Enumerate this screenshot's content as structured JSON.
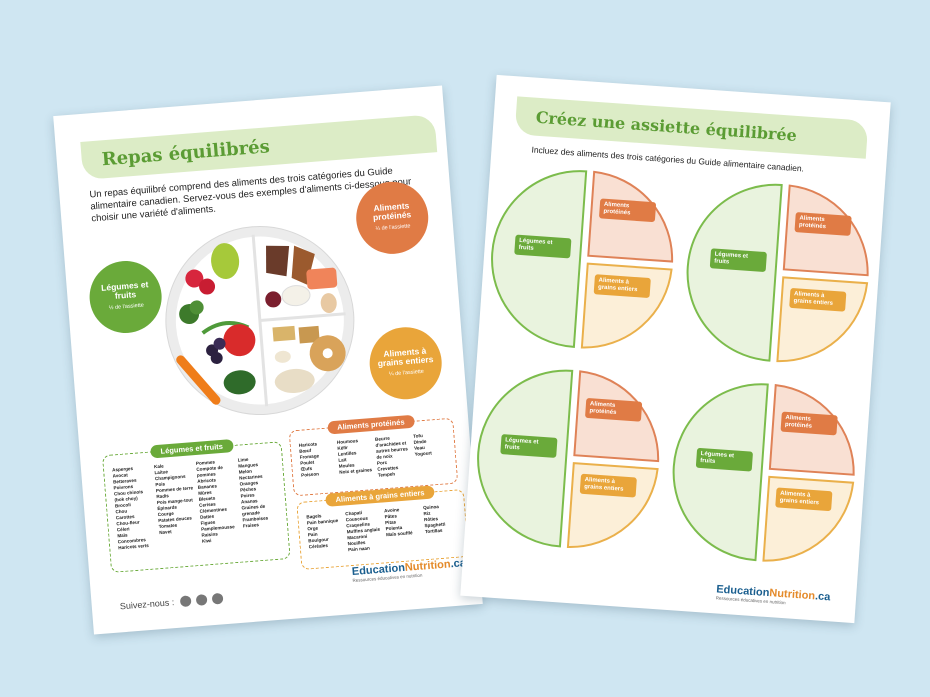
{
  "left_sheet": {
    "title": "Repas équilibrés",
    "intro": "Un repas équilibré comprend des aliments des trois catégories du Guide alimentaire canadien. Servez-vous des exemples d'aliments ci-dessous pour choisir une variété d'aliments.",
    "badges": [
      {
        "label": "Légumes et fruits",
        "portion": "½ de l'assiette"
      },
      {
        "label": "Aliments protéinés",
        "portion": "¼ de l'assiette"
      },
      {
        "label": "Aliments à grains entiers",
        "portion": "¼ de l'assiette"
      }
    ],
    "lists": [
      {
        "title": "Légumes et fruits",
        "columns": [
          [
            "Asperges",
            "Avocat",
            "Betteraves",
            "Poivrons",
            "Chou chinois (bok choy)",
            "Brocoli",
            "Chou",
            "Carottes",
            "Chou-fleur",
            "Céleri",
            "Maïs",
            "Concombres",
            "Haricots verts"
          ],
          [
            "Kale",
            "Laitue",
            "Champignons",
            "Pois",
            "Pommes de terre",
            "Radis",
            "Pois mange-tout",
            "Épinards",
            "Courge",
            "Patates douces",
            "Tomates",
            "Navet"
          ],
          [
            "Pommes",
            "Compote de pommes",
            "Abricots",
            "Bananes",
            "Mûres",
            "Bleuets",
            "Cerises",
            "Clémentines",
            "Dattes",
            "Figues",
            "Pamplemousse",
            "Raisins",
            "Kiwi"
          ],
          [
            "Lime",
            "Mangues",
            "Melon",
            "Nectarines",
            "Oranges",
            "Pêches",
            "Poires",
            "Ananas",
            "Graines de grenade",
            "Framboises",
            "Fraises"
          ]
        ]
      },
      {
        "title": "Aliments protéinés",
        "columns": [
          [
            "Haricots",
            "Bœuf",
            "Fromage",
            "Poulet",
            "Œufs",
            "Poisson"
          ],
          [
            "Houmous",
            "Kéfir",
            "Lentilles",
            "Lait",
            "Moules",
            "Noix et graines"
          ],
          [
            "Beurre d'arachides et autres beurres de noix",
            "Porc",
            "Crevettes",
            "Tempeh"
          ],
          [
            "Tofu",
            "Dinde",
            "Veau",
            "Yogourt"
          ]
        ]
      },
      {
        "title": "Aliments à grains entiers",
        "columns": [
          [
            "Bagels",
            "Pain bannique",
            "Orge",
            "Pain",
            "Boulgour",
            "Céréales"
          ],
          [
            "Chapati",
            "Couscous",
            "Craquelins",
            "Muffins anglais",
            "Macaroni",
            "Nouilles",
            "Pain naan"
          ],
          [
            "Avoine",
            "Pâtes",
            "Pitas",
            "Polenta",
            "Maïs soufflé"
          ],
          [
            "Quinoa",
            "Riz",
            "Rôties",
            "Spaghetti",
            "Tortillas"
          ]
        ]
      }
    ],
    "follow": "Suivez-nous :",
    "logo": {
      "part_a": "Education",
      "part_b": "Nutrition",
      "part_c": ".ca",
      "tagline": "Ressources éducatives en nutrition"
    }
  },
  "right_sheet": {
    "title": "Créez une assiette équilibrée",
    "intro": "Incluez des aliments des trois catégories du Guide alimentaire canadien.",
    "plate_labels": {
      "vegetables": "Légumes et fruits",
      "protein": "Aliments protéinés",
      "grains": "Aliments à grains entiers"
    },
    "logo": {
      "part_a": "Education",
      "part_b": "Nutrition",
      "part_c": ".ca",
      "tagline": "Ressources éducatives en nutrition"
    }
  }
}
